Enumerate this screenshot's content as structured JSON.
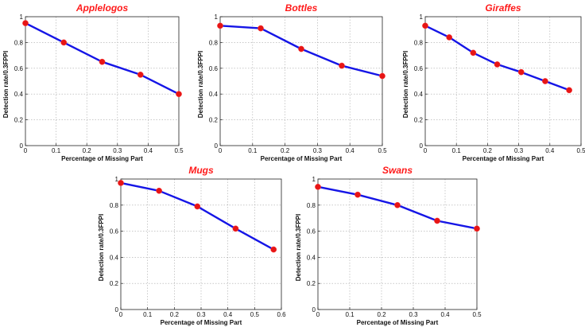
{
  "chart_data": [
    {
      "type": "line",
      "title": "Applelogos",
      "xlabel": "Percentage of Missing Part",
      "ylabel": "Detection rate/0.3FPPI",
      "xlim": [
        0,
        0.5
      ],
      "ylim": [
        0,
        1
      ],
      "xticks": [
        "0",
        "0.1",
        "0.2",
        "0.3",
        "0.4",
        "0.5"
      ],
      "yticks": [
        "0",
        "0.2",
        "0.4",
        "0.6",
        "0.8",
        "1"
      ],
      "grid": true,
      "x": [
        0,
        0.125,
        0.25,
        0.375,
        0.5
      ],
      "y": [
        0.95,
        0.8,
        0.65,
        0.55,
        0.4
      ]
    },
    {
      "type": "line",
      "title": "Bottles",
      "xlabel": "Percentage of Missing Part",
      "ylabel": "Detection rate/0.3FPPI",
      "xlim": [
        0,
        0.5
      ],
      "ylim": [
        0,
        1
      ],
      "xticks": [
        "0",
        "0.1",
        "0.2",
        "0.3",
        "0.4",
        "0.5"
      ],
      "yticks": [
        "0",
        "0.2",
        "0.4",
        "0.6",
        "0.8",
        "1"
      ],
      "grid": true,
      "x": [
        0,
        0.125,
        0.25,
        0.375,
        0.5
      ],
      "y": [
        0.93,
        0.91,
        0.75,
        0.62,
        0.54
      ]
    },
    {
      "type": "line",
      "title": "Giraffes",
      "xlabel": "Percentage of Missing Part",
      "ylabel": "Detection rate/0.3FPPI",
      "xlim": [
        0,
        0.5
      ],
      "ylim": [
        0,
        1
      ],
      "xticks": [
        "0",
        "0.1",
        "0.2",
        "0.3",
        "0.4",
        "0.5"
      ],
      "yticks": [
        "0",
        "0.2",
        "0.4",
        "0.6",
        "0.8",
        "1"
      ],
      "grid": true,
      "x": [
        0,
        0.077,
        0.154,
        0.231,
        0.308,
        0.385,
        0.462
      ],
      "y": [
        0.93,
        0.84,
        0.72,
        0.63,
        0.57,
        0.5,
        0.43
      ]
    },
    {
      "type": "line",
      "title": "Mugs",
      "xlabel": "Percentage of Missing Part",
      "ylabel": "Detection rate/0.3FPPI",
      "xlim": [
        0,
        0.6
      ],
      "ylim": [
        0,
        1
      ],
      "xticks": [
        "0",
        "0.1",
        "0.2",
        "0.3",
        "0.4",
        "0.5",
        "0.6"
      ],
      "yticks": [
        "0",
        "0.2",
        "0.4",
        "0.6",
        "0.8",
        "1"
      ],
      "grid": true,
      "x": [
        0,
        0.143,
        0.286,
        0.429,
        0.571
      ],
      "y": [
        0.97,
        0.91,
        0.79,
        0.62,
        0.46
      ]
    },
    {
      "type": "line",
      "title": "Swans",
      "xlabel": "Percentage of Missing Part",
      "ylabel": "Detection rate/0.3FPPI",
      "xlim": [
        0,
        0.5
      ],
      "ylim": [
        0,
        1
      ],
      "xticks": [
        "0",
        "0.1",
        "0.2",
        "0.3",
        "0.4",
        "0.5"
      ],
      "yticks": [
        "0",
        "0.2",
        "0.4",
        "0.6",
        "0.8",
        "1"
      ],
      "grid": true,
      "x": [
        0,
        0.125,
        0.25,
        0.375,
        0.5
      ],
      "y": [
        0.94,
        0.88,
        0.8,
        0.68,
        0.62
      ]
    }
  ],
  "colors": {
    "title": "#ff1a1a",
    "line": "#1515e6",
    "marker": "#e61515",
    "grid": "#a8a8a8",
    "axes": "#222222"
  }
}
